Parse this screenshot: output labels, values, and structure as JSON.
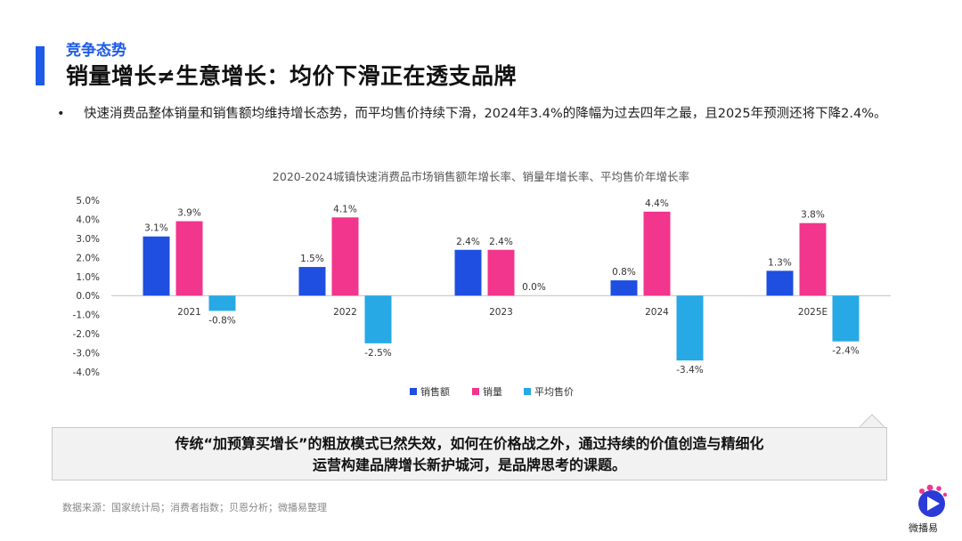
{
  "header": {
    "section": "竞争态势",
    "title": "销量增长≠生意增长：均价下滑正在透支品牌"
  },
  "bullet": {
    "marker": "•",
    "text": "快速消费品整体销量和销售额均维持增长态势，而平均售价持续下滑，2024年3.4%的降幅为过去四年之最，且2025年预测还将下降2.4%。"
  },
  "callout": {
    "line1": "传统“加预算买增长”的粗放模式已然失效，如何在价格战之外，通过持续的价值创造与精细化",
    "line2": "运营构建品牌增长新护城河，是品牌思考的课题。"
  },
  "footer": {
    "source": "数据来源：国家统计局；消费者指数；贝恩分析；微播易整理",
    "logo_text": "微播易"
  },
  "chart_data": {
    "type": "bar",
    "title": "2020-2024城镇快速消费品市场销售额年增长率、销量年增长率、平均售价年增长率",
    "categories": [
      "2021",
      "2022",
      "2023",
      "2024",
      "2025E"
    ],
    "series": [
      {
        "name": "销售额",
        "color": "#1e4fe0",
        "values": [
          3.1,
          1.5,
          2.4,
          0.8,
          1.3
        ],
        "labels": [
          "3.1%",
          "1.5%",
          "2.4%",
          "0.8%",
          "1.3%"
        ]
      },
      {
        "name": "销量",
        "color": "#f2358d",
        "values": [
          3.9,
          4.1,
          2.4,
          4.4,
          3.8
        ],
        "labels": [
          "3.9%",
          "4.1%",
          "2.4%",
          "4.4%",
          "3.8%"
        ]
      },
      {
        "name": "平均售价",
        "color": "#27a9e6",
        "values": [
          -0.8,
          -2.5,
          0.0,
          -3.4,
          -2.4
        ],
        "labels": [
          "-0.8%",
          "-2.5%",
          "0.0%",
          "-3.4%",
          "-2.4%"
        ]
      }
    ],
    "ylim": [
      -4.0,
      5.0
    ],
    "yticks": [
      "5.0%",
      "4.0%",
      "3.0%",
      "2.0%",
      "1.0%",
      "0.0%",
      "-1.0%",
      "-2.0%",
      "-3.0%",
      "-4.0%"
    ],
    "grid": false,
    "legend_position": "bottom"
  },
  "watermark": "微播易"
}
